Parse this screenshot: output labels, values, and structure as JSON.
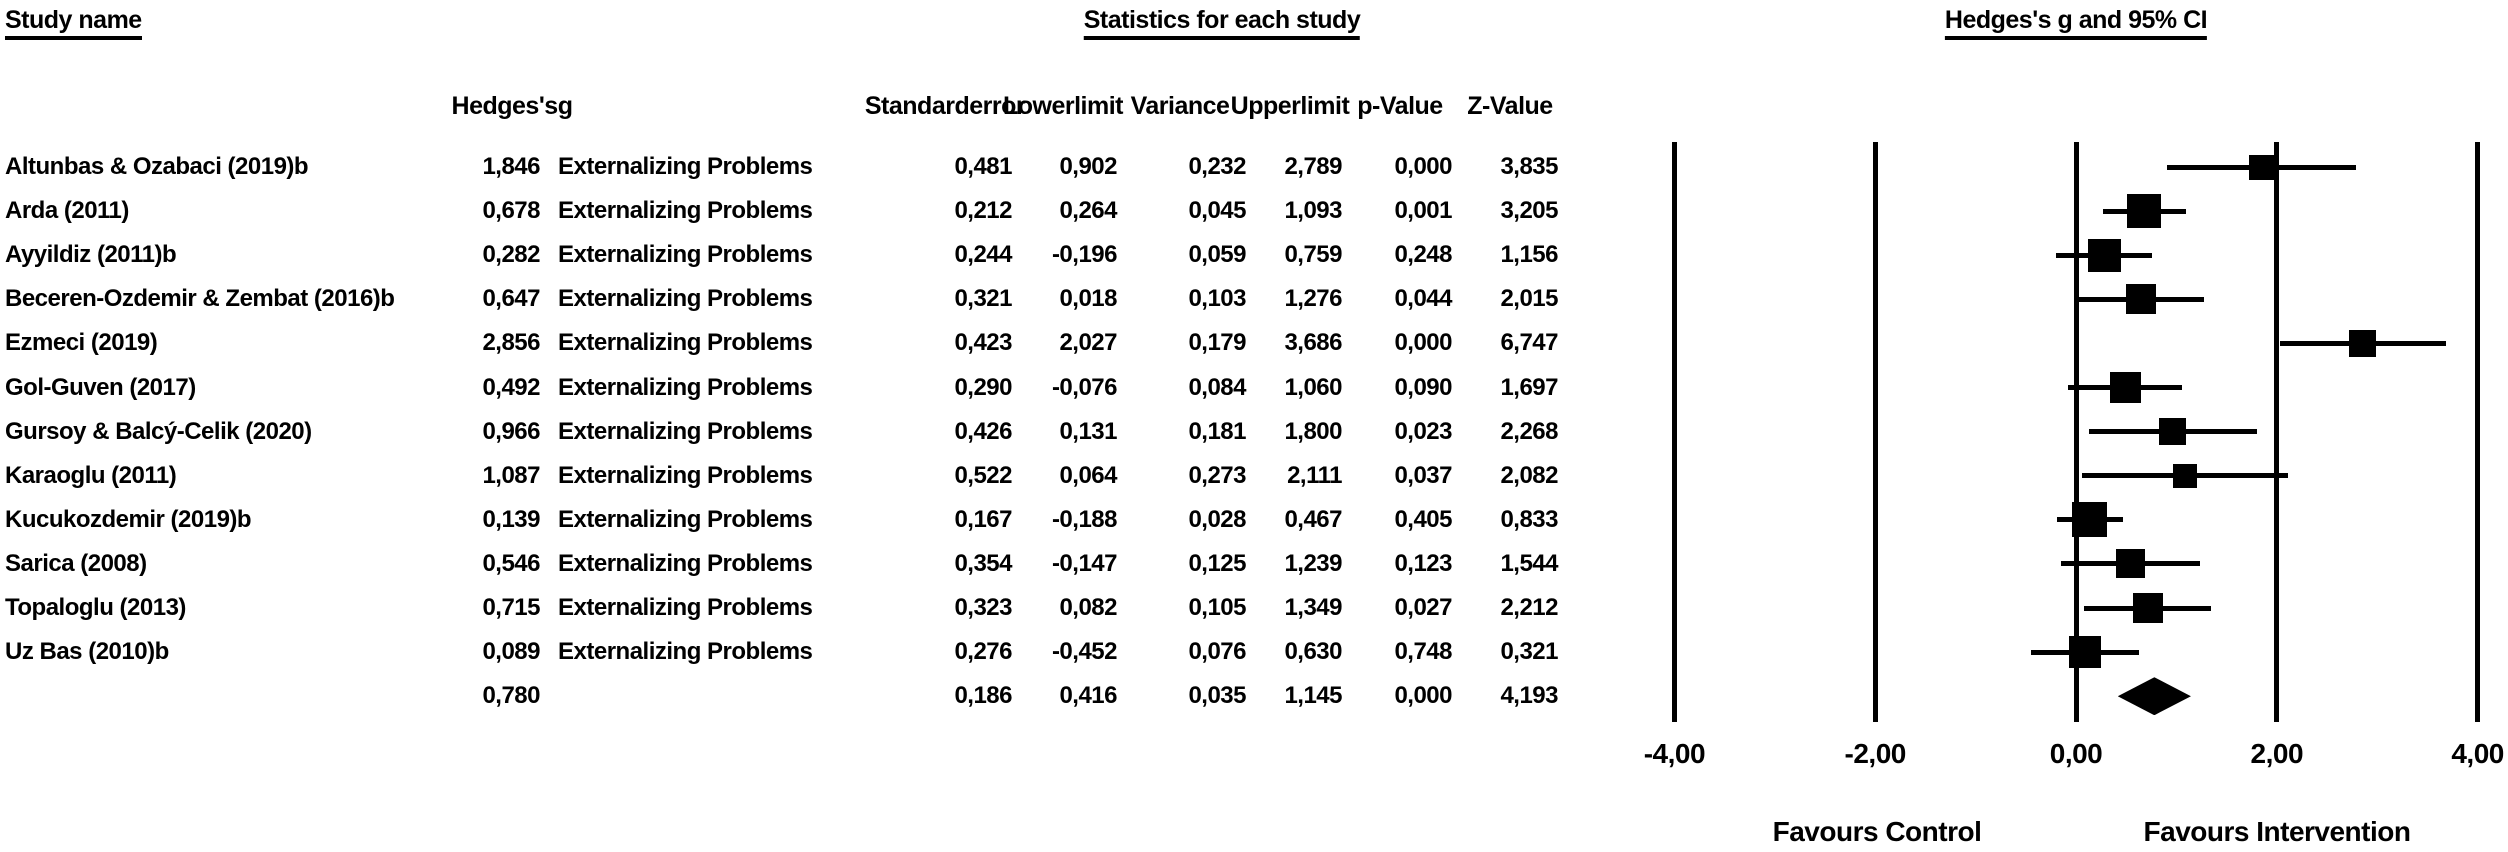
{
  "titles": {
    "study_name": "Study name",
    "statistics": "Statistics for each study",
    "plot": "Hedges's g and 95% CI"
  },
  "columns": {
    "hedges": {
      "l1": "Hedges's",
      "l2": "g"
    },
    "standard_error": {
      "l1": "Standard",
      "l2": "error"
    },
    "lower_limit": {
      "l1": "Lower",
      "l2": "limit"
    },
    "variance": "Variance",
    "upper_limit": {
      "l1": "Upper",
      "l2": "limit"
    },
    "p_value": "p-Value",
    "z_value": "Z-Value"
  },
  "colors": {
    "ink": "#000000",
    "background": "#ffffff"
  },
  "chart_data": {
    "type": "forest",
    "title": "Hedges's g and 95% CI",
    "x_axis": {
      "ticks": [
        "-4,00",
        "-2,00",
        "0,00",
        "2,00",
        "4,00"
      ],
      "values": [
        -4,
        -2,
        0,
        2,
        4
      ],
      "range": [
        -4,
        4
      ]
    },
    "footer": {
      "left": "Favours Control",
      "right": "Favours Intervention"
    },
    "outcome_label": "Externalizing Problems",
    "studies": [
      {
        "name": "Altunbas & Ozabaci (2019)b",
        "group": "Externalizing Problems",
        "g": "1,846",
        "se": "0,481",
        "lower": "0,902",
        "variance": "0,232",
        "upper": "2,789",
        "p": "0,000",
        "z": "3,835"
      },
      {
        "name": "Arda (2011)",
        "group": "Externalizing Problems",
        "g": "0,678",
        "se": "0,212",
        "lower": "0,264",
        "variance": "0,045",
        "upper": "1,093",
        "p": "0,001",
        "z": "3,205"
      },
      {
        "name": "Ayyildiz (2011)b",
        "group": "Externalizing Problems",
        "g": "0,282",
        "se": "0,244",
        "lower": "-0,196",
        "variance": "0,059",
        "upper": "0,759",
        "p": "0,248",
        "z": "1,156"
      },
      {
        "name": "Beceren-Ozdemir & Zembat (2016)b",
        "group": "Externalizing Problems",
        "g": "0,647",
        "se": "0,321",
        "lower": "0,018",
        "variance": "0,103",
        "upper": "1,276",
        "p": "0,044",
        "z": "2,015"
      },
      {
        "name": "Ezmeci (2019)",
        "group": "Externalizing Problems",
        "g": "2,856",
        "se": "0,423",
        "lower": "2,027",
        "variance": "0,179",
        "upper": "3,686",
        "p": "0,000",
        "z": "6,747"
      },
      {
        "name": "Gol-Guven (2017)",
        "group": "Externalizing Problems",
        "g": "0,492",
        "se": "0,290",
        "lower": "-0,076",
        "variance": "0,084",
        "upper": "1,060",
        "p": "0,090",
        "z": "1,697"
      },
      {
        "name": "Gursoy & Balcý-Celik (2020)",
        "group": "Externalizing Problems",
        "g": "0,966",
        "se": "0,426",
        "lower": "0,131",
        "variance": "0,181",
        "upper": "1,800",
        "p": "0,023",
        "z": "2,268"
      },
      {
        "name": "Karaoglu (2011)",
        "group": "Externalizing Problems",
        "g": "1,087",
        "se": "0,522",
        "lower": "0,064",
        "variance": "0,273",
        "upper": "2,111",
        "p": "0,037",
        "z": "2,082"
      },
      {
        "name": "Kucukozdemir (2019)b",
        "group": "Externalizing Problems",
        "g": "0,139",
        "se": "0,167",
        "lower": "-0,188",
        "variance": "0,028",
        "upper": "0,467",
        "p": "0,405",
        "z": "0,833"
      },
      {
        "name": "Sarica (2008)",
        "group": "Externalizing Problems",
        "g": "0,546",
        "se": "0,354",
        "lower": "-0,147",
        "variance": "0,125",
        "upper": "1,239",
        "p": "0,123",
        "z": "1,544"
      },
      {
        "name": "Topaloglu (2013)",
        "group": "Externalizing Problems",
        "g": "0,715",
        "se": "0,323",
        "lower": "0,082",
        "variance": "0,105",
        "upper": "1,349",
        "p": "0,027",
        "z": "2,212"
      },
      {
        "name": "Uz Bas (2010)b",
        "group": "Externalizing Problems",
        "g": "0,089",
        "se": "0,276",
        "lower": "-0,452",
        "variance": "0,076",
        "upper": "0,630",
        "p": "0,748",
        "z": "0,321"
      }
    ],
    "overall": {
      "g": "0,780",
      "se": "0,186",
      "lower": "0,416",
      "variance": "0,035",
      "upper": "1,145",
      "p": "0,000",
      "z": "4,193"
    }
  }
}
